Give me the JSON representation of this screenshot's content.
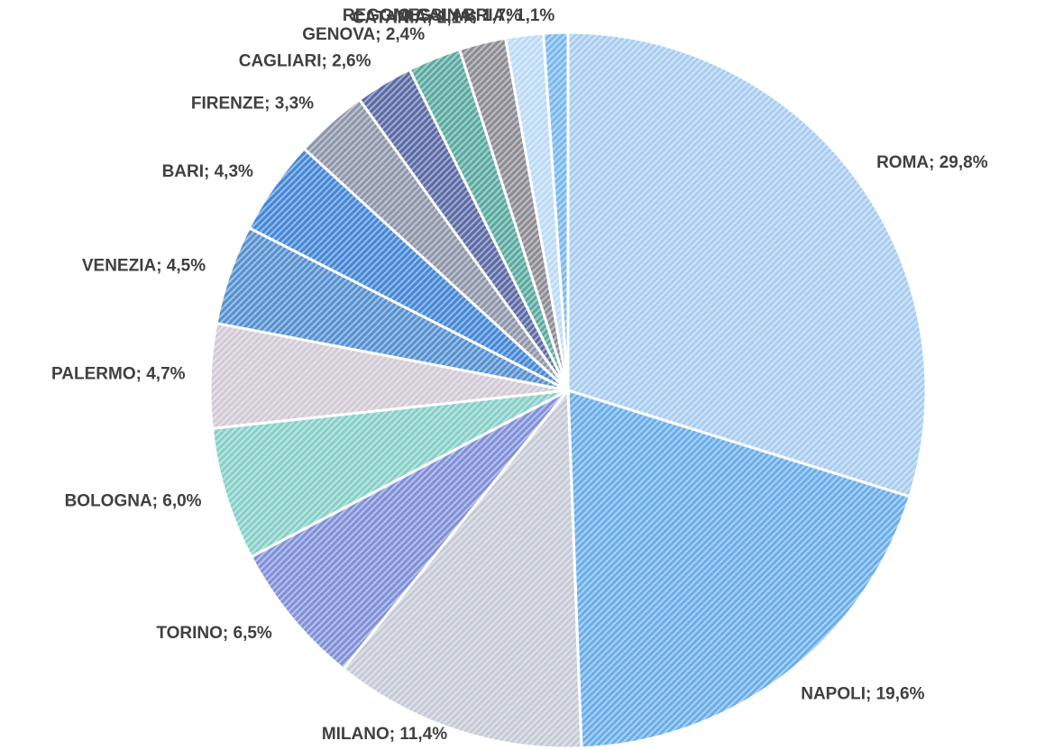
{
  "chart_data": {
    "type": "pie",
    "values": [
      29.8,
      19.6,
      11.4,
      6.5,
      6.0,
      4.7,
      4.5,
      4.3,
      3.3,
      2.6,
      2.4,
      2.1,
      1.7,
      1.1
    ],
    "value_labels": [
      "ROMA; 29,8%",
      "NAPOLI; 19,6%",
      "MILANO; 11,4%",
      "TORINO; 6,5%",
      "BOLOGNA; 6,0%",
      "PALERMO; 4,7%",
      "VENEZIA; 4,5%",
      "BARI; 4,3%",
      "FIRENZE; 3,3%",
      "CAGLIARI; 2,6%",
      "GENOVA; 2,4%",
      "CATANIA; 2,1%",
      "MESSINA; 1,7%",
      "REGGIO CALABRIA; 1,1%"
    ],
    "colors": [
      "#a9cdf0",
      "#6aaeea",
      "#c5cad6",
      "#8090d8",
      "#86d0c8",
      "#d2cad6",
      "#5591d0",
      "#4487d6",
      "#8e96aa",
      "#5b6aa6",
      "#5aa9a1",
      "#8d8b93",
      "#bcdaf5",
      "#7ab8f0"
    ]
  }
}
